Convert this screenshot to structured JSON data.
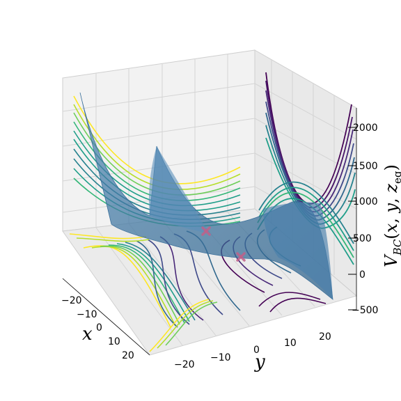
{
  "chart_data": {
    "type": "surface3d",
    "title": "",
    "xlabel": "x",
    "ylabel": "y",
    "zlabel": "V_{BC}(x, y, z_eq)",
    "x_ticks": [
      "−20",
      "−10",
      "0",
      "10",
      "20"
    ],
    "y_ticks": [
      "−20",
      "−10",
      "0",
      "10",
      "20"
    ],
    "z_ticks": [
      "−500",
      "0",
      "500",
      "1000",
      "1500",
      "2000"
    ],
    "xlim": [
      -25,
      25
    ],
    "ylim": [
      -25,
      25
    ],
    "zlim": [
      -600,
      2200
    ],
    "grid": true,
    "surface_color": "#3b73a0",
    "contour_colormap": "viridis",
    "marker_color": "#c0608a",
    "markers": [
      {
        "x": 0,
        "y": 0
      },
      {
        "x": 5,
        "y": 5
      }
    ]
  }
}
